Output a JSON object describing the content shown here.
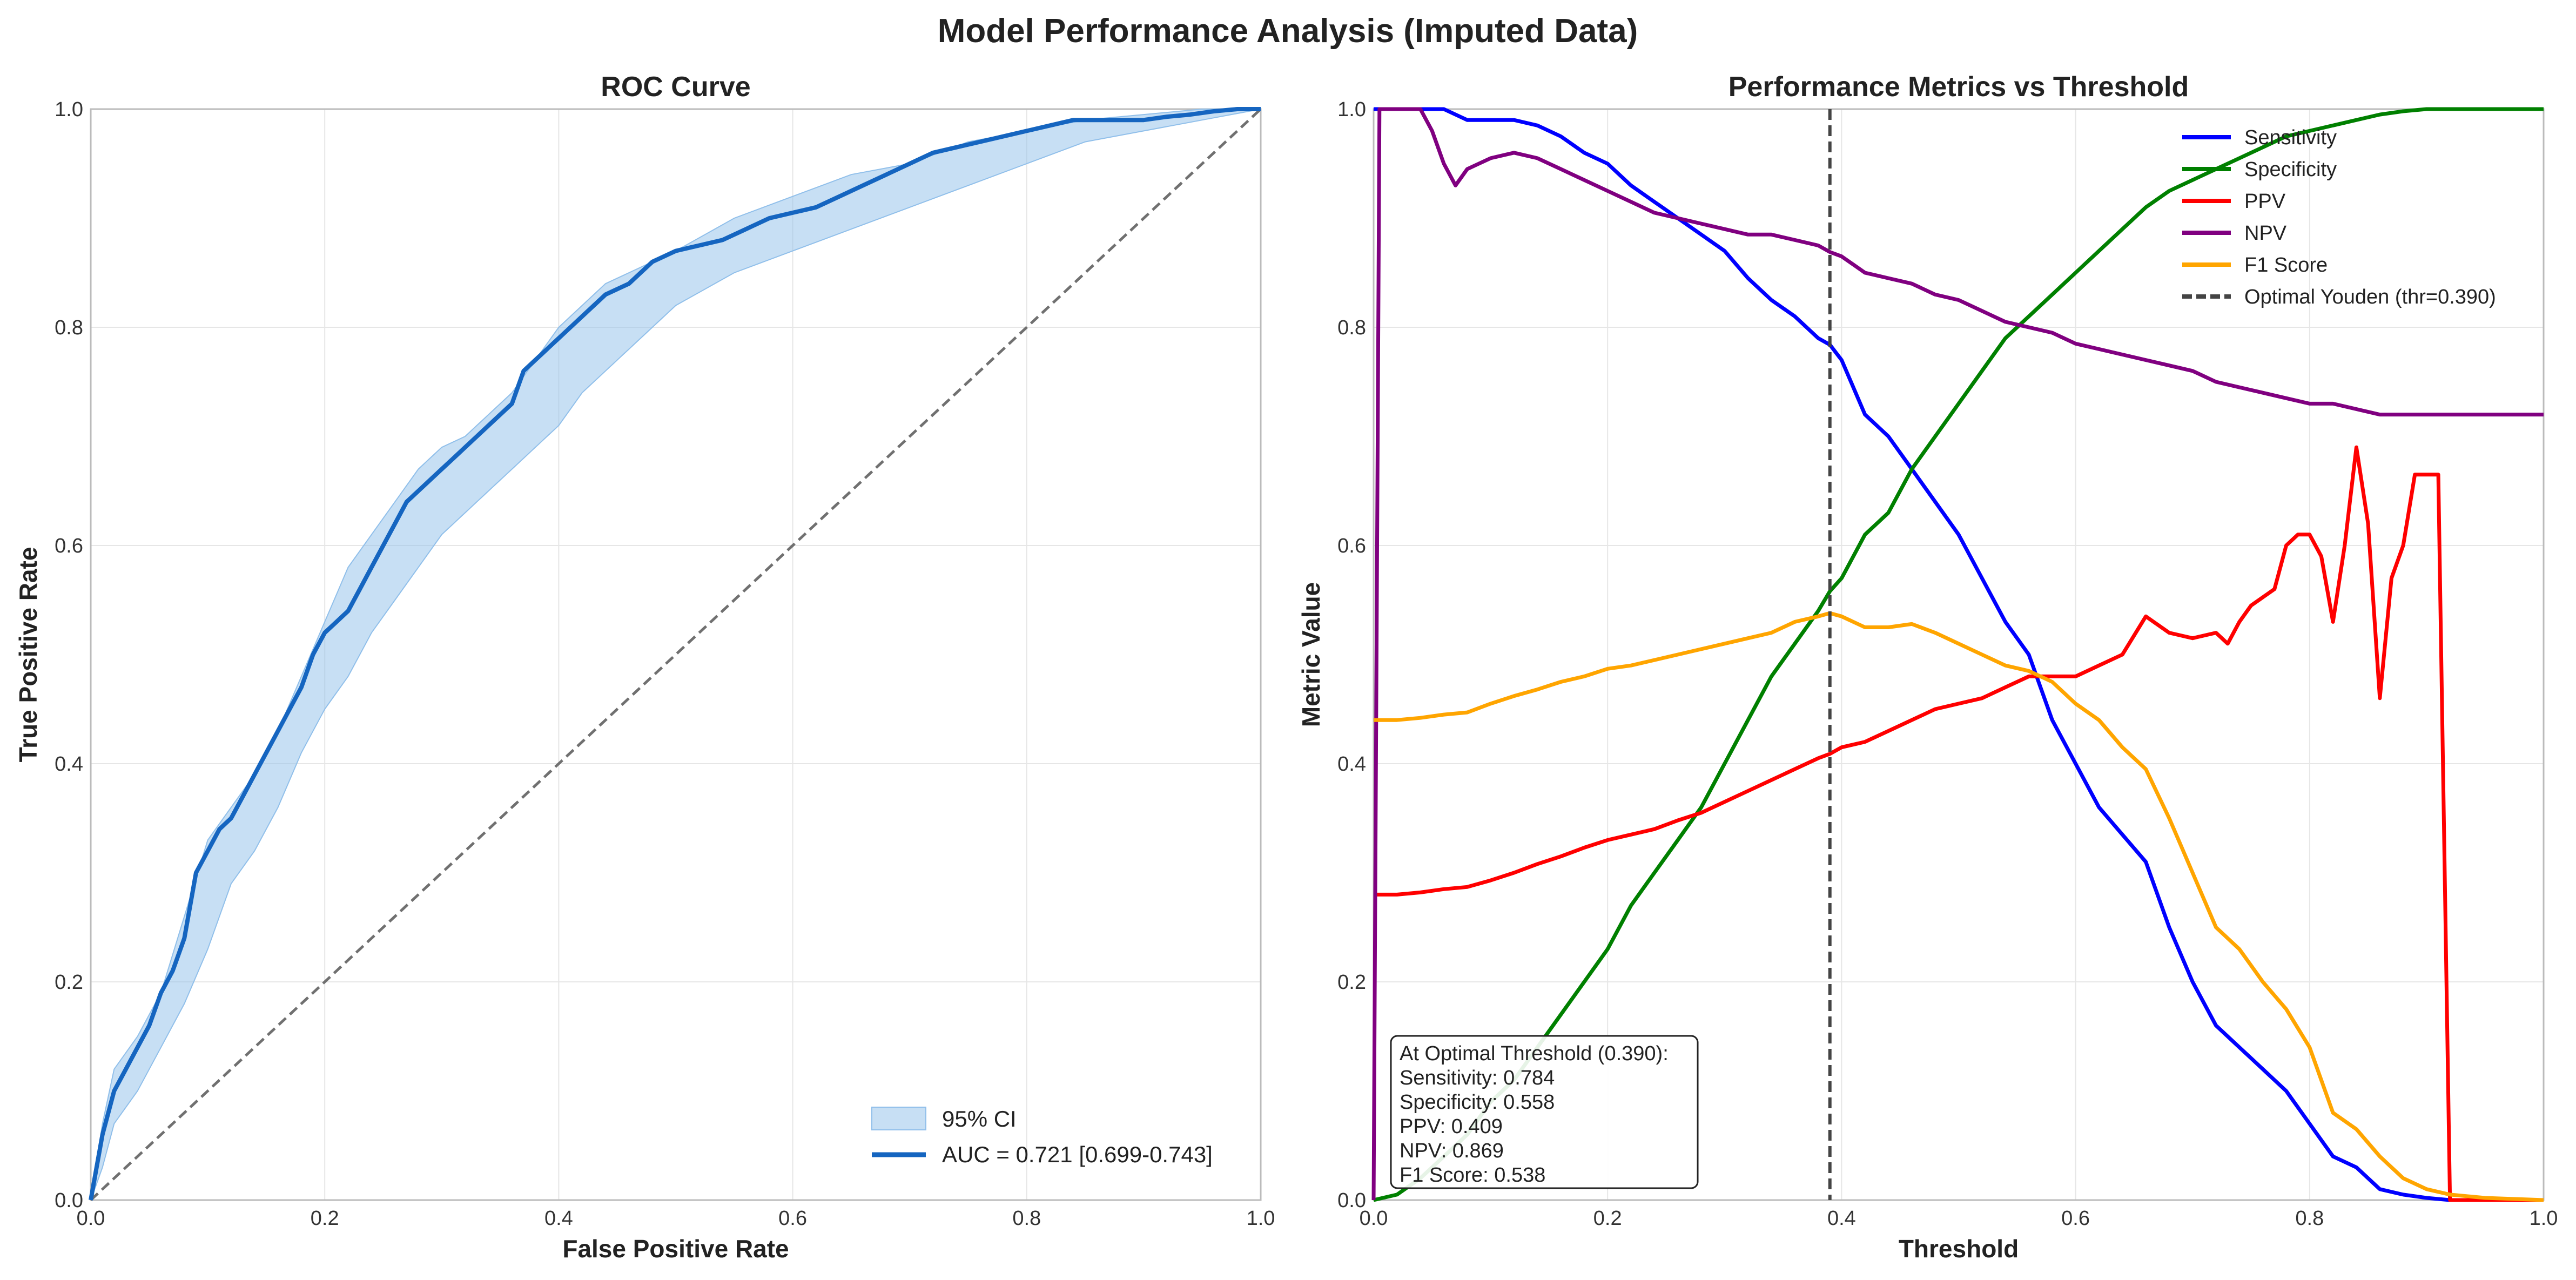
{
  "figure": {
    "suptitle": "Model Performance Analysis (Imputed Data)"
  },
  "colors": {
    "roc_line": "#1565C0",
    "roc_ci": "#90BFEA",
    "diagonal": "#707070",
    "sensitivity": "#0000FF",
    "specificity": "#008000",
    "ppv": "#FF0000",
    "npv": "#800080",
    "f1": "#FFA500",
    "youden": "#444444",
    "grid": "#e6e6e6",
    "axes_edge": "#bbbbbb"
  },
  "chart_data": [
    {
      "type": "line",
      "title": "ROC Curve",
      "xlabel": "False Positive Rate",
      "ylabel": "True Positive Rate",
      "xlim": [
        0,
        1
      ],
      "ylim": [
        0,
        1
      ],
      "xticks": [
        "0.0",
        "0.2",
        "0.4",
        "0.6",
        "0.8",
        "1.0"
      ],
      "yticks": [
        "0.0",
        "0.2",
        "0.4",
        "0.6",
        "0.8",
        "1.0"
      ],
      "grid": true,
      "legend_position": "lower-right",
      "legend": [
        "95% CI",
        "AUC = 0.721 [0.699-0.743]"
      ],
      "series": [
        {
          "name": "AUC = 0.721 [0.699-0.743]",
          "x": [
            0,
            0.005,
            0.01,
            0.02,
            0.03,
            0.04,
            0.05,
            0.06,
            0.07,
            0.08,
            0.09,
            0.1,
            0.11,
            0.12,
            0.13,
            0.14,
            0.15,
            0.16,
            0.17,
            0.18,
            0.19,
            0.2,
            0.21,
            0.22,
            0.23,
            0.24,
            0.25,
            0.26,
            0.27,
            0.28,
            0.29,
            0.3,
            0.31,
            0.32,
            0.33,
            0.34,
            0.35,
            0.36,
            0.37,
            0.38,
            0.39,
            0.4,
            0.41,
            0.42,
            0.43,
            0.44,
            0.45,
            0.46,
            0.47,
            0.48,
            0.5,
            0.52,
            0.54,
            0.56,
            0.58,
            0.6,
            0.62,
            0.64,
            0.66,
            0.68,
            0.7,
            0.72,
            0.74,
            0.76,
            0.78,
            0.8,
            0.82,
            0.84,
            0.86,
            0.88,
            0.9,
            0.92,
            0.94,
            0.96,
            0.98,
            1.0
          ],
          "y": [
            0,
            0.03,
            0.06,
            0.1,
            0.12,
            0.14,
            0.16,
            0.19,
            0.21,
            0.24,
            0.3,
            0.32,
            0.34,
            0.35,
            0.37,
            0.39,
            0.41,
            0.43,
            0.45,
            0.47,
            0.5,
            0.52,
            0.53,
            0.54,
            0.56,
            0.58,
            0.6,
            0.62,
            0.64,
            0.65,
            0.66,
            0.67,
            0.68,
            0.69,
            0.7,
            0.71,
            0.72,
            0.73,
            0.76,
            0.77,
            0.78,
            0.79,
            0.8,
            0.81,
            0.82,
            0.83,
            0.835,
            0.84,
            0.85,
            0.86,
            0.87,
            0.875,
            0.88,
            0.89,
            0.9,
            0.905,
            0.91,
            0.92,
            0.93,
            0.94,
            0.95,
            0.96,
            0.965,
            0.97,
            0.975,
            0.98,
            0.985,
            0.99,
            0.99,
            0.99,
            0.99,
            0.993,
            0.995,
            0.998,
            1.0,
            1.0
          ]
        },
        {
          "name": "95% CI",
          "x": [
            0,
            0.01,
            0.02,
            0.04,
            0.06,
            0.08,
            0.1,
            0.12,
            0.14,
            0.16,
            0.18,
            0.2,
            0.22,
            0.24,
            0.26,
            0.28,
            0.3,
            0.32,
            0.34,
            0.36,
            0.38,
            0.4,
            0.42,
            0.44,
            0.46,
            0.48,
            0.5,
            0.55,
            0.6,
            0.65,
            0.7,
            0.75,
            0.8,
            0.85,
            0.9,
            0.95,
            1.0
          ],
          "y_low": [
            0,
            0.03,
            0.07,
            0.1,
            0.14,
            0.18,
            0.23,
            0.29,
            0.32,
            0.36,
            0.41,
            0.45,
            0.48,
            0.52,
            0.55,
            0.58,
            0.61,
            0.63,
            0.65,
            0.67,
            0.69,
            0.71,
            0.74,
            0.76,
            0.78,
            0.8,
            0.82,
            0.85,
            0.87,
            0.89,
            0.91,
            0.93,
            0.95,
            0.97,
            0.98,
            0.99,
            1.0
          ],
          "y_high": [
            0,
            0.07,
            0.12,
            0.15,
            0.19,
            0.26,
            0.33,
            0.36,
            0.39,
            0.43,
            0.48,
            0.53,
            0.58,
            0.61,
            0.64,
            0.67,
            0.69,
            0.7,
            0.72,
            0.74,
            0.77,
            0.8,
            0.82,
            0.84,
            0.85,
            0.86,
            0.87,
            0.9,
            0.92,
            0.94,
            0.95,
            0.97,
            0.98,
            0.99,
            0.995,
            1.0,
            1.0
          ]
        }
      ]
    },
    {
      "type": "line",
      "title": "Performance Metrics vs Threshold",
      "xlabel": "Threshold",
      "ylabel": "Metric Value",
      "xlim": [
        0,
        1
      ],
      "ylim": [
        0,
        1
      ],
      "xticks": [
        "0.0",
        "0.2",
        "0.4",
        "0.6",
        "0.8",
        "1.0"
      ],
      "yticks": [
        "0.0",
        "0.2",
        "0.4",
        "0.6",
        "0.8",
        "1.0"
      ],
      "grid": true,
      "legend_position": "upper-right",
      "legend": [
        "Sensitivity",
        "Specificity",
        "PPV",
        "NPV",
        "F1 Score",
        "Optimal Youden (thr=0.390)"
      ],
      "optimal_threshold": 0.39,
      "annotation": {
        "lines": [
          "At Optimal Threshold (0.390):",
          "Sensitivity: 0.784",
          "Specificity: 0.558",
          "PPV: 0.409",
          "NPV: 0.869",
          "F1 Score: 0.538"
        ]
      },
      "series": [
        {
          "name": "Sensitivity",
          "x": [
            0,
            0.05,
            0.06,
            0.08,
            0.1,
            0.12,
            0.14,
            0.16,
            0.18,
            0.2,
            0.22,
            0.24,
            0.26,
            0.28,
            0.3,
            0.32,
            0.34,
            0.36,
            0.38,
            0.39,
            0.4,
            0.42,
            0.44,
            0.46,
            0.48,
            0.5,
            0.52,
            0.54,
            0.56,
            0.58,
            0.6,
            0.62,
            0.64,
            0.66,
            0.68,
            0.7,
            0.72,
            0.74,
            0.76,
            0.78,
            0.8,
            0.82,
            0.84,
            0.86,
            0.88,
            0.9,
            0.92,
            0.95,
            1.0
          ],
          "y": [
            1.0,
            1.0,
            1.0,
            0.99,
            0.99,
            0.99,
            0.985,
            0.975,
            0.96,
            0.95,
            0.93,
            0.915,
            0.9,
            0.885,
            0.87,
            0.845,
            0.825,
            0.81,
            0.79,
            0.784,
            0.77,
            0.72,
            0.7,
            0.67,
            0.64,
            0.61,
            0.57,
            0.53,
            0.5,
            0.44,
            0.4,
            0.36,
            0.335,
            0.31,
            0.25,
            0.2,
            0.16,
            0.14,
            0.12,
            0.1,
            0.07,
            0.04,
            0.03,
            0.01,
            0.005,
            0.002,
            0.0,
            0.0,
            0.0
          ]
        },
        {
          "name": "Specificity",
          "x": [
            0,
            0.02,
            0.04,
            0.06,
            0.08,
            0.1,
            0.12,
            0.14,
            0.16,
            0.18,
            0.2,
            0.22,
            0.24,
            0.26,
            0.28,
            0.3,
            0.32,
            0.34,
            0.36,
            0.38,
            0.39,
            0.4,
            0.42,
            0.44,
            0.46,
            0.48,
            0.5,
            0.52,
            0.54,
            0.56,
            0.58,
            0.6,
            0.62,
            0.64,
            0.66,
            0.68,
            0.7,
            0.72,
            0.74,
            0.76,
            0.78,
            0.8,
            0.82,
            0.84,
            0.86,
            0.88,
            0.9,
            1.0
          ],
          "y": [
            0.0,
            0.005,
            0.02,
            0.04,
            0.06,
            0.09,
            0.11,
            0.14,
            0.17,
            0.2,
            0.23,
            0.27,
            0.3,
            0.33,
            0.36,
            0.4,
            0.44,
            0.48,
            0.51,
            0.54,
            0.558,
            0.57,
            0.61,
            0.63,
            0.67,
            0.7,
            0.73,
            0.76,
            0.79,
            0.81,
            0.83,
            0.85,
            0.87,
            0.89,
            0.91,
            0.925,
            0.935,
            0.945,
            0.955,
            0.965,
            0.975,
            0.98,
            0.985,
            0.99,
            0.995,
            0.998,
            1.0,
            1.0
          ]
        },
        {
          "name": "PPV",
          "x": [
            0,
            0.005,
            0.02,
            0.04,
            0.06,
            0.08,
            0.1,
            0.12,
            0.14,
            0.16,
            0.18,
            0.2,
            0.22,
            0.24,
            0.26,
            0.28,
            0.3,
            0.32,
            0.34,
            0.36,
            0.38,
            0.39,
            0.4,
            0.42,
            0.44,
            0.46,
            0.48,
            0.5,
            0.52,
            0.54,
            0.56,
            0.58,
            0.6,
            0.62,
            0.64,
            0.66,
            0.68,
            0.7,
            0.72,
            0.73,
            0.74,
            0.75,
            0.77,
            0.78,
            0.79,
            0.8,
            0.81,
            0.82,
            0.83,
            0.84,
            0.85,
            0.86,
            0.87,
            0.88,
            0.89,
            0.9,
            0.91,
            0.92,
            0.95,
            1.0
          ],
          "y": [
            0.28,
            0.28,
            0.28,
            0.282,
            0.285,
            0.287,
            0.293,
            0.3,
            0.308,
            0.315,
            0.323,
            0.33,
            0.335,
            0.34,
            0.348,
            0.355,
            0.365,
            0.375,
            0.385,
            0.395,
            0.405,
            0.409,
            0.415,
            0.42,
            0.43,
            0.44,
            0.45,
            0.455,
            0.46,
            0.47,
            0.48,
            0.48,
            0.48,
            0.49,
            0.5,
            0.535,
            0.52,
            0.515,
            0.52,
            0.51,
            0.53,
            0.545,
            0.56,
            0.6,
            0.61,
            0.61,
            0.59,
            0.53,
            0.6,
            0.69,
            0.62,
            0.46,
            0.57,
            0.6,
            0.665,
            0.665,
            0.665,
            0.0,
            0.0,
            0.0
          ]
        },
        {
          "name": "NPV",
          "x": [
            0,
            0.005,
            0.02,
            0.04,
            0.05,
            0.06,
            0.07,
            0.08,
            0.09,
            0.1,
            0.12,
            0.14,
            0.16,
            0.18,
            0.2,
            0.22,
            0.24,
            0.26,
            0.28,
            0.3,
            0.32,
            0.34,
            0.36,
            0.38,
            0.39,
            0.4,
            0.42,
            0.44,
            0.46,
            0.48,
            0.5,
            0.52,
            0.54,
            0.56,
            0.58,
            0.6,
            0.62,
            0.64,
            0.66,
            0.68,
            0.7,
            0.72,
            0.74,
            0.76,
            0.78,
            0.8,
            0.82,
            0.84,
            0.86,
            0.88,
            0.9,
            1.0
          ],
          "y": [
            0.0,
            1.0,
            1.0,
            1.0,
            0.98,
            0.95,
            0.93,
            0.945,
            0.95,
            0.955,
            0.96,
            0.955,
            0.945,
            0.935,
            0.925,
            0.915,
            0.905,
            0.9,
            0.895,
            0.89,
            0.885,
            0.885,
            0.88,
            0.875,
            0.869,
            0.865,
            0.85,
            0.845,
            0.84,
            0.83,
            0.825,
            0.815,
            0.805,
            0.8,
            0.795,
            0.785,
            0.78,
            0.775,
            0.77,
            0.765,
            0.76,
            0.75,
            0.745,
            0.74,
            0.735,
            0.73,
            0.73,
            0.725,
            0.72,
            0.72,
            0.72,
            0.72
          ]
        },
        {
          "name": "F1 Score",
          "x": [
            0,
            0.02,
            0.04,
            0.06,
            0.08,
            0.1,
            0.12,
            0.14,
            0.16,
            0.18,
            0.2,
            0.22,
            0.24,
            0.26,
            0.28,
            0.3,
            0.32,
            0.34,
            0.36,
            0.38,
            0.39,
            0.4,
            0.42,
            0.44,
            0.46,
            0.48,
            0.5,
            0.52,
            0.54,
            0.56,
            0.58,
            0.6,
            0.62,
            0.64,
            0.66,
            0.68,
            0.7,
            0.72,
            0.74,
            0.76,
            0.78,
            0.8,
            0.82,
            0.84,
            0.86,
            0.88,
            0.9,
            0.92,
            0.95,
            1.0
          ],
          "y": [
            0.44,
            0.44,
            0.442,
            0.445,
            0.447,
            0.455,
            0.462,
            0.468,
            0.475,
            0.48,
            0.487,
            0.49,
            0.495,
            0.5,
            0.505,
            0.51,
            0.515,
            0.52,
            0.53,
            0.535,
            0.538,
            0.535,
            0.525,
            0.525,
            0.528,
            0.52,
            0.51,
            0.5,
            0.49,
            0.485,
            0.475,
            0.455,
            0.44,
            0.415,
            0.395,
            0.35,
            0.3,
            0.25,
            0.23,
            0.2,
            0.175,
            0.14,
            0.08,
            0.065,
            0.04,
            0.02,
            0.01,
            0.005,
            0.002,
            0.0
          ]
        }
      ]
    }
  ]
}
